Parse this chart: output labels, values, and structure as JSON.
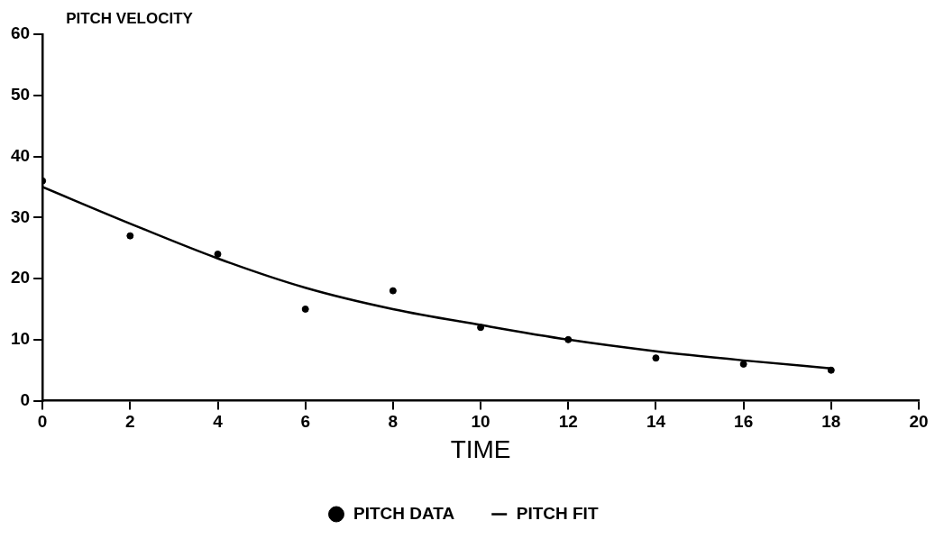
{
  "chart_data": {
    "type": "scatter",
    "ylabel": "PITCH VELOCITY",
    "xlabel": "TIME",
    "xlim": [
      0,
      20
    ],
    "xticks": [
      0,
      2,
      4,
      6,
      8,
      10,
      12,
      14,
      16,
      18,
      20
    ],
    "ylim": [
      0,
      60
    ],
    "yticks": [
      0,
      10,
      20,
      30,
      40,
      50,
      60
    ],
    "grid": false,
    "legend": "bottom",
    "marker": "circle",
    "series": [
      {
        "name": "PITCH DATA",
        "color": "#000000",
        "x": [
          0,
          2,
          4,
          6,
          8,
          10,
          12,
          14,
          16,
          18
        ],
        "values": [
          36,
          27,
          24,
          15,
          18,
          12,
          10,
          7,
          6,
          5
        ]
      },
      {
        "name": "PITCH FIT",
        "type": "line",
        "color": "#000000",
        "line_style": "solid",
        "marker": "none",
        "x": [
          0,
          2,
          4,
          6,
          8,
          10,
          12,
          14,
          16,
          18
        ],
        "values": [
          35,
          29,
          23.3,
          18.5,
          15,
          12.4,
          10,
          8.1,
          6.6,
          5.3
        ]
      }
    ]
  }
}
